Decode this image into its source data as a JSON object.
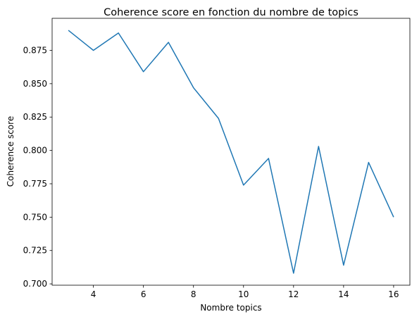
{
  "chart_data": {
    "type": "line",
    "title": "Coherence score en fonction du nombre de topics",
    "xlabel": "Nombre topics",
    "ylabel": "Coherence score",
    "x": [
      3,
      4,
      5,
      6,
      7,
      8,
      9,
      10,
      11,
      12,
      13,
      14,
      15,
      16
    ],
    "y": [
      0.89,
      0.875,
      0.888,
      0.859,
      0.881,
      0.847,
      0.824,
      0.774,
      0.794,
      0.708,
      0.803,
      0.714,
      0.791,
      0.75
    ],
    "xticks": [
      4,
      6,
      8,
      10,
      12,
      14,
      16
    ],
    "yticks": [
      0.7,
      0.725,
      0.75,
      0.775,
      0.8,
      0.825,
      0.85,
      0.875
    ],
    "xtick_labels": [
      "4",
      "6",
      "8",
      "10",
      "12",
      "14",
      "16"
    ],
    "ytick_labels": [
      "0.700",
      "0.725",
      "0.750",
      "0.775",
      "0.800",
      "0.825",
      "0.850",
      "0.875"
    ],
    "xlim": [
      2.35,
      16.65
    ],
    "ylim": [
      0.699,
      0.899
    ],
    "grid": false,
    "colors": {
      "line": "#1f77b4",
      "axes": "#000000"
    }
  }
}
